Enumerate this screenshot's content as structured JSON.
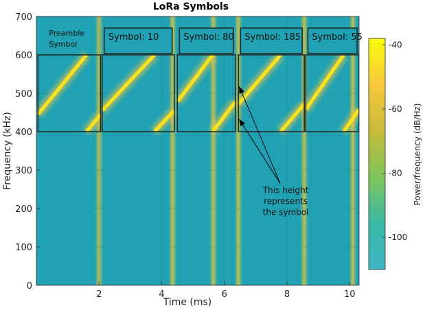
{
  "chart_data": {
    "type": "heatmap",
    "title": "LoRa Symbols",
    "xlabel": "Time (ms)",
    "ylabel": "Frequency (kHz)",
    "xlim": [
      0,
      10.3
    ],
    "ylim": [
      0,
      700
    ],
    "xticks": [
      2,
      4,
      6,
      8,
      10
    ],
    "yticks": [
      0,
      100,
      200,
      300,
      400,
      500,
      600,
      700
    ],
    "grid": true,
    "background_color": "#21a2b4",
    "colorbar": {
      "label": "Power/frequency (dB/Hz)",
      "range": [
        -110,
        -38
      ],
      "ticks": [
        -40,
        -60,
        -80,
        -100
      ],
      "colors": [
        "#3fb6c6",
        "#39b8a4",
        "#7ec55a",
        "#c7bb3a",
        "#f7c93c",
        "#f9fb0e"
      ]
    },
    "chirp_band": [
      400,
      600
    ],
    "vertical_streaks_ms": [
      2.0,
      4.35,
      5.65,
      6.45,
      8.55,
      10.1
    ],
    "symbols": [
      {
        "label": "Preamble\nSymbol",
        "t_start": 0.05,
        "t_end": 2.05,
        "start_freq": 445
      },
      {
        "label": "Symbol: 10",
        "t_start": 2.1,
        "t_end": 4.4,
        "start_freq": 455
      },
      {
        "label": "Symbol: 80",
        "t_start": 4.5,
        "t_end": 6.35,
        "start_freq": 478
      },
      {
        "label": "Symbol: 185",
        "t_start": 6.45,
        "t_end": 8.55,
        "start_freq": 472
      },
      {
        "label": "Symbol: 55",
        "t_start": 8.6,
        "t_end": 10.3,
        "start_freq": 458
      }
    ],
    "annotation": {
      "text": [
        "This height",
        "represents",
        "the symbol"
      ],
      "text_at": [
        7.3,
        240
      ],
      "arrow_targets": [
        [
          6.45,
          525
        ],
        [
          6.45,
          440
        ]
      ]
    }
  }
}
